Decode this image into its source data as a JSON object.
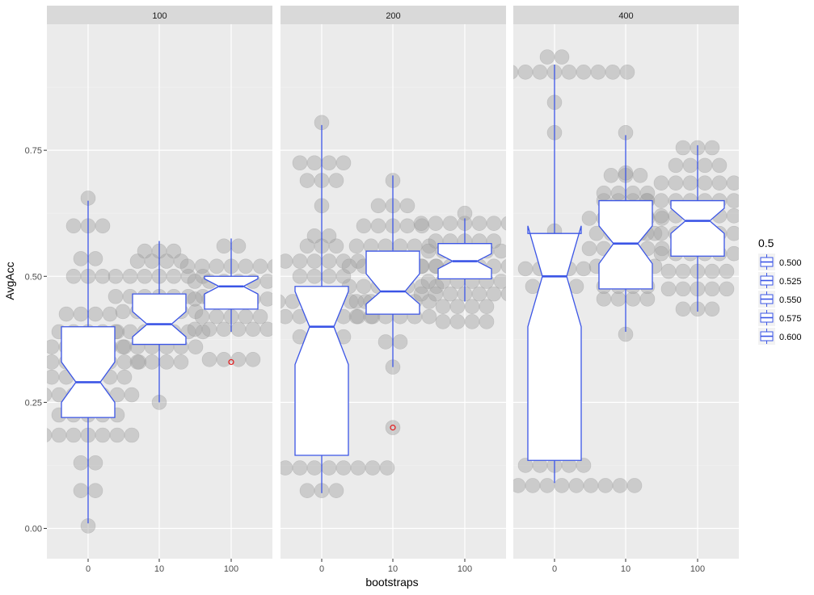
{
  "chart_data": {
    "type": "boxplot",
    "xlabel": "bootstraps",
    "ylabel": "AvgAcc",
    "ylim": [
      -0.06,
      1.0
    ],
    "yticks": [
      0.0,
      0.25,
      0.5,
      0.75
    ],
    "ytick_labels": [
      "0.00",
      "0.25",
      "0.50",
      "0.75"
    ],
    "categories": [
      "0",
      "10",
      "100"
    ],
    "grid": true,
    "legend": {
      "title": "0.5",
      "entries": [
        "0.500",
        "0.525",
        "0.550",
        "0.575",
        "0.600"
      ],
      "placement": "right"
    },
    "colors": {
      "panel_bg": "#ebebeb",
      "strip_bg": "#d9d9d9",
      "grid_major": "#ffffff",
      "box_line": "#3b55e6",
      "box_fill": "#ffffff",
      "outlier": "#e31a1c",
      "dot_fill": "#a0a0a0"
    },
    "facets": [
      {
        "label": "100",
        "boxes": [
          {
            "x": "0",
            "min": 0.01,
            "q1": 0.22,
            "median": 0.29,
            "q3": 0.4,
            "max": 0.65,
            "notch": [
              0.25,
              0.33
            ],
            "outliers": []
          },
          {
            "x": "10",
            "min": 0.25,
            "q1": 0.365,
            "median": 0.405,
            "q3": 0.465,
            "max": 0.57,
            "notch": [
              0.38,
              0.43
            ],
            "outliers": []
          },
          {
            "x": "100",
            "min": 0.39,
            "q1": 0.435,
            "median": 0.48,
            "q3": 0.5,
            "max": 0.575,
            "notch": [
              0.465,
              0.495
            ],
            "outliers": [
              0.33
            ]
          }
        ],
        "dots": [
          {
            "x": "0",
            "y": [
              0.005,
              0.075,
              0.075,
              0.13,
              0.13,
              0.185,
              0.185,
              0.185,
              0.185,
              0.185,
              0.185,
              0.185,
              0.225,
              0.225,
              0.225,
              0.225,
              0.225,
              0.265,
              0.265,
              0.265,
              0.265,
              0.265,
              0.265,
              0.265,
              0.3,
              0.3,
              0.3,
              0.3,
              0.3,
              0.3,
              0.33,
              0.33,
              0.33,
              0.33,
              0.33,
              0.33,
              0.33,
              0.33,
              0.36,
              0.36,
              0.36,
              0.36,
              0.36,
              0.36,
              0.39,
              0.39,
              0.39,
              0.39,
              0.39,
              0.425,
              0.425,
              0.425,
              0.425,
              0.5,
              0.5,
              0.5,
              0.535,
              0.535,
              0.6,
              0.6,
              0.6,
              0.655
            ]
          },
          {
            "x": "10",
            "y": [
              0.25,
              0.33,
              0.33,
              0.33,
              0.33,
              0.36,
              0.36,
              0.36,
              0.36,
              0.36,
              0.36,
              0.39,
              0.39,
              0.39,
              0.39,
              0.39,
              0.39,
              0.39,
              0.43,
              0.43,
              0.43,
              0.43,
              0.43,
              0.43,
              0.46,
              0.46,
              0.46,
              0.46,
              0.46,
              0.46,
              0.46,
              0.5,
              0.5,
              0.5,
              0.5,
              0.5,
              0.5,
              0.5,
              0.53,
              0.53,
              0.53,
              0.53,
              0.55,
              0.55,
              0.55
            ]
          },
          {
            "x": "100",
            "y": [
              0.335,
              0.335,
              0.335,
              0.335,
              0.395,
              0.395,
              0.395,
              0.395,
              0.395,
              0.395,
              0.42,
              0.42,
              0.42,
              0.42,
              0.42,
              0.455,
              0.455,
              0.455,
              0.455,
              0.455,
              0.455,
              0.49,
              0.49,
              0.49,
              0.49,
              0.49,
              0.49,
              0.52,
              0.52,
              0.52,
              0.52,
              0.52,
              0.52,
              0.52,
              0.56,
              0.56
            ]
          }
        ]
      },
      {
        "label": "200",
        "boxes": [
          {
            "x": "0",
            "min": 0.07,
            "q1": 0.145,
            "median": 0.4,
            "q3": 0.48,
            "max": 0.8,
            "notch": [
              0.325,
              0.47
            ],
            "outliers": []
          },
          {
            "x": "10",
            "min": 0.32,
            "q1": 0.425,
            "median": 0.47,
            "q3": 0.55,
            "max": 0.7,
            "notch": [
              0.445,
              0.505
            ],
            "outliers": [
              0.2
            ]
          },
          {
            "x": "100",
            "min": 0.45,
            "q1": 0.495,
            "median": 0.53,
            "q3": 0.565,
            "max": 0.615,
            "notch": [
              0.515,
              0.545
            ],
            "outliers": []
          }
        ],
        "dots": [
          {
            "x": "0",
            "y": [
              0.075,
              0.075,
              0.075,
              0.12,
              0.12,
              0.12,
              0.12,
              0.12,
              0.12,
              0.12,
              0.12,
              0.12,
              0.12,
              0.25,
              0.34,
              0.38,
              0.38,
              0.38,
              0.38,
              0.42,
              0.42,
              0.42,
              0.42,
              0.42,
              0.42,
              0.42,
              0.42,
              0.45,
              0.45,
              0.45,
              0.45,
              0.45,
              0.45,
              0.45,
              0.45,
              0.45,
              0.5,
              0.5,
              0.5,
              0.5,
              0.53,
              0.53,
              0.53,
              0.53,
              0.53,
              0.53,
              0.56,
              0.56,
              0.56,
              0.58,
              0.58,
              0.64,
              0.69,
              0.69,
              0.69,
              0.725,
              0.725,
              0.725,
              0.725,
              0.805
            ]
          },
          {
            "x": "10",
            "y": [
              0.2,
              0.32,
              0.37,
              0.37,
              0.42,
              0.42,
              0.42,
              0.42,
              0.42,
              0.42,
              0.45,
              0.45,
              0.45,
              0.45,
              0.45,
              0.45,
              0.48,
              0.48,
              0.48,
              0.48,
              0.48,
              0.48,
              0.48,
              0.52,
              0.52,
              0.52,
              0.52,
              0.52,
              0.52,
              0.52,
              0.56,
              0.56,
              0.56,
              0.56,
              0.56,
              0.56,
              0.6,
              0.6,
              0.6,
              0.6,
              0.6,
              0.64,
              0.64,
              0.64,
              0.69
            ]
          },
          {
            "x": "100",
            "y": [
              0.41,
              0.41,
              0.41,
              0.41,
              0.44,
              0.44,
              0.44,
              0.44,
              0.465,
              0.465,
              0.465,
              0.465,
              0.465,
              0.465,
              0.465,
              0.49,
              0.49,
              0.49,
              0.49,
              0.49,
              0.49,
              0.52,
              0.52,
              0.52,
              0.52,
              0.52,
              0.52,
              0.52,
              0.55,
              0.55,
              0.55,
              0.55,
              0.55,
              0.55,
              0.57,
              0.57,
              0.57,
              0.57,
              0.57,
              0.605,
              0.605,
              0.605,
              0.605,
              0.605,
              0.605,
              0.605,
              0.625
            ]
          }
        ]
      },
      {
        "label": "400",
        "boxes": [
          {
            "x": "0",
            "min": 0.09,
            "q1": 0.135,
            "median": 0.5,
            "q3": 0.585,
            "max": 0.92,
            "notch": [
              0.4,
              0.6
            ],
            "outliers": []
          },
          {
            "x": "10",
            "min": 0.39,
            "q1": 0.475,
            "median": 0.565,
            "q3": 0.65,
            "max": 0.78,
            "notch": [
              0.525,
              0.6
            ],
            "outliers": []
          },
          {
            "x": "100",
            "min": 0.43,
            "q1": 0.54,
            "median": 0.61,
            "q3": 0.65,
            "max": 0.76,
            "notch": [
              0.585,
              0.635
            ],
            "outliers": []
          }
        ],
        "dots": [
          {
            "x": "0",
            "y": [
              0.085,
              0.085,
              0.085,
              0.085,
              0.085,
              0.085,
              0.085,
              0.085,
              0.085,
              0.085,
              0.085,
              0.085,
              0.125,
              0.125,
              0.125,
              0.125,
              0.125,
              0.45,
              0.48,
              0.48,
              0.48,
              0.48,
              0.515,
              0.515,
              0.515,
              0.515,
              0.515,
              0.59,
              0.785,
              0.845,
              0.905,
              0.905,
              0.905,
              0.905,
              0.905,
              0.905,
              0.905,
              0.905,
              0.905,
              0.905,
              0.905,
              0.935,
              0.935
            ]
          },
          {
            "x": "10",
            "y": [
              0.385,
              0.455,
              0.455,
              0.455,
              0.455,
              0.48,
              0.48,
              0.48,
              0.48,
              0.52,
              0.52,
              0.52,
              0.52,
              0.52,
              0.555,
              0.555,
              0.555,
              0.555,
              0.555,
              0.555,
              0.585,
              0.585,
              0.585,
              0.585,
              0.585,
              0.615,
              0.615,
              0.615,
              0.615,
              0.615,
              0.615,
              0.65,
              0.65,
              0.65,
              0.65,
              0.665,
              0.665,
              0.665,
              0.665,
              0.7,
              0.7,
              0.7,
              0.705,
              0.785
            ]
          },
          {
            "x": "100",
            "y": [
              0.435,
              0.435,
              0.435,
              0.475,
              0.475,
              0.475,
              0.475,
              0.475,
              0.51,
              0.51,
              0.51,
              0.51,
              0.51,
              0.545,
              0.545,
              0.545,
              0.545,
              0.545,
              0.545,
              0.585,
              0.585,
              0.585,
              0.585,
              0.585,
              0.585,
              0.585,
              0.585,
              0.62,
              0.62,
              0.62,
              0.62,
              0.62,
              0.62,
              0.62,
              0.62,
              0.65,
              0.65,
              0.65,
              0.65,
              0.65,
              0.65,
              0.65,
              0.65,
              0.685,
              0.685,
              0.685,
              0.685,
              0.685,
              0.685,
              0.72,
              0.72,
              0.72,
              0.72,
              0.755,
              0.755,
              0.755
            ]
          }
        ]
      }
    ]
  }
}
